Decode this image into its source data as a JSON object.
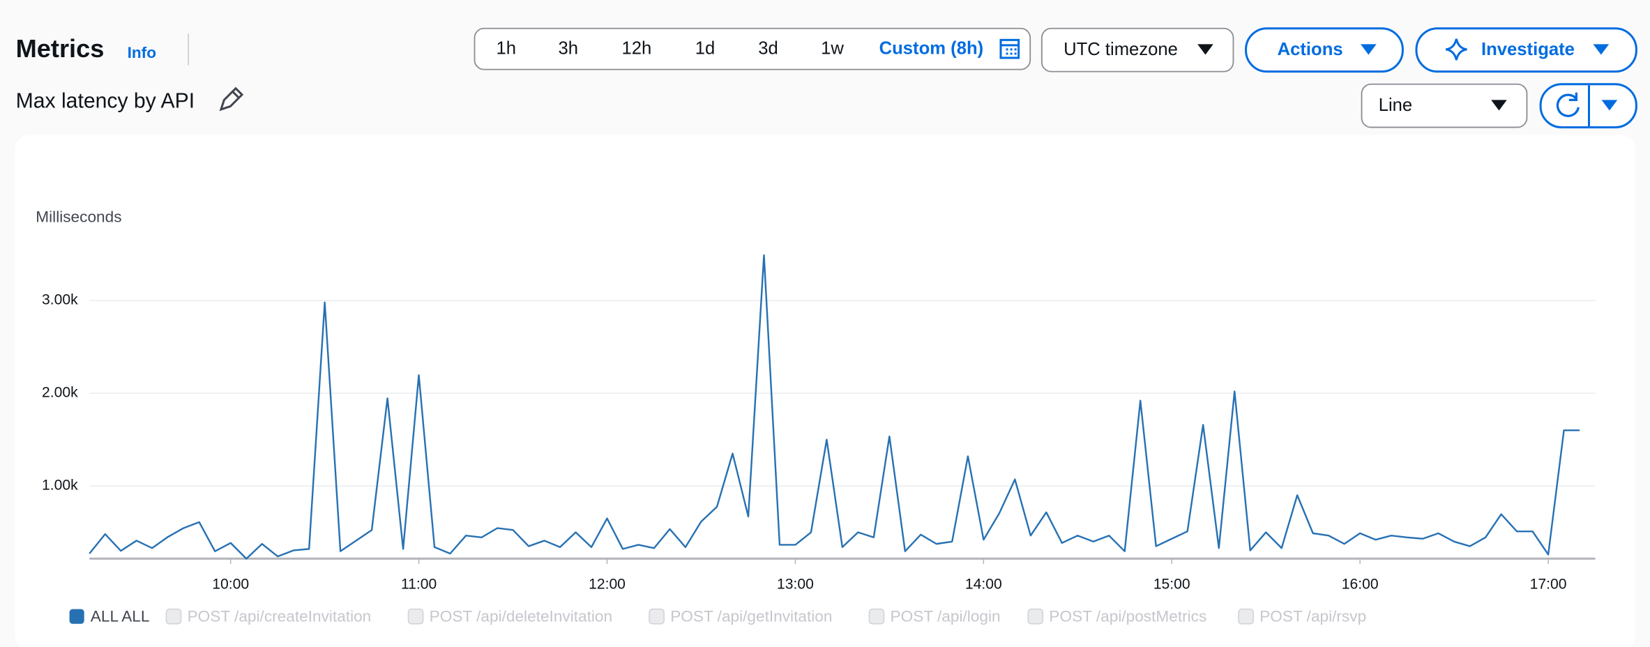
{
  "header": {
    "title": "Metrics",
    "info": "Info",
    "subtitle": "Max latency by API"
  },
  "time_range": {
    "options": [
      "1h",
      "3h",
      "12h",
      "1d",
      "3d",
      "1w"
    ],
    "custom": "Custom (8h)"
  },
  "timezone": "UTC timezone",
  "actions": "Actions",
  "investigate": "Investigate",
  "view_type": "Line",
  "chart_data": {
    "type": "line",
    "y_label": "Milliseconds",
    "x": [
      "09:15",
      "09:20",
      "09:25",
      "09:30",
      "09:35",
      "09:40",
      "09:45",
      "09:50",
      "09:55",
      "10:00",
      "10:05",
      "10:10",
      "10:15",
      "10:20",
      "10:25",
      "10:30",
      "10:35",
      "10:40",
      "10:45",
      "10:50",
      "10:55",
      "11:00",
      "11:05",
      "11:10",
      "11:15",
      "11:20",
      "11:25",
      "11:30",
      "11:35",
      "11:40",
      "11:45",
      "11:50",
      "11:55",
      "12:00",
      "12:05",
      "12:10",
      "12:15",
      "12:20",
      "12:25",
      "12:30",
      "12:35",
      "12:40",
      "12:45",
      "12:50",
      "12:55",
      "13:00",
      "13:05",
      "13:10",
      "13:15",
      "13:20",
      "13:25",
      "13:30",
      "13:35",
      "13:40",
      "13:45",
      "13:50",
      "13:55",
      "14:00",
      "14:05",
      "14:10",
      "14:15",
      "14:20",
      "14:25",
      "14:30",
      "14:35",
      "14:40",
      "14:45",
      "14:50",
      "14:55",
      "15:00",
      "15:05",
      "15:10",
      "15:15",
      "15:20",
      "15:25",
      "15:30",
      "15:35",
      "15:40",
      "15:45",
      "15:50",
      "15:55",
      "16:00",
      "16:05",
      "16:10",
      "16:15",
      "16:20",
      "16:25",
      "16:30",
      "16:35",
      "16:40",
      "16:45",
      "16:50",
      "16:55",
      "17:00",
      "17:05",
      "17:10"
    ],
    "series": [
      {
        "name": "ALL ALL",
        "color": "#2771b3",
        "values": [
          270,
          480,
          300,
          410,
          330,
          450,
          545,
          610,
          295,
          385,
          215,
          375,
          240,
          305,
          320,
          2980,
          295,
          410,
          525,
          1945,
          320,
          2195,
          340,
          270,
          465,
          445,
          545,
          525,
          350,
          410,
          340,
          500,
          340,
          650,
          320,
          365,
          330,
          535,
          340,
          615,
          775,
          1350,
          670,
          3490,
          365,
          365,
          500,
          1500,
          340,
          500,
          445,
          1535,
          295,
          475,
          375,
          400,
          1320,
          420,
          705,
          1070,
          465,
          715,
          385,
          465,
          400,
          465,
          295,
          1920,
          350,
          430,
          510,
          1660,
          330,
          2020,
          305,
          500,
          330,
          900,
          490,
          465,
          375,
          490,
          420,
          465,
          445,
          430,
          490,
          400,
          350,
          445,
          695,
          510,
          510,
          260,
          1600,
          1600
        ]
      }
    ],
    "inactive_series": [
      "POST /api/createInvitation",
      "POST /api/deleteInvitation",
      "POST /api/getInvitation",
      "POST /api/login",
      "POST /api/postMetrics",
      "POST /api/rsvp"
    ],
    "ylim": [
      216,
      3700
    ],
    "yticks": [
      {
        "value": 1000,
        "label": "1.00k"
      },
      {
        "value": 2000,
        "label": "2.00k"
      },
      {
        "value": 3000,
        "label": "3.00k"
      }
    ],
    "xlim": [
      "09:15",
      "17:15"
    ],
    "xticks": [
      "10:00",
      "11:00",
      "12:00",
      "13:00",
      "14:00",
      "15:00",
      "16:00",
      "17:00"
    ],
    "grid": true
  }
}
